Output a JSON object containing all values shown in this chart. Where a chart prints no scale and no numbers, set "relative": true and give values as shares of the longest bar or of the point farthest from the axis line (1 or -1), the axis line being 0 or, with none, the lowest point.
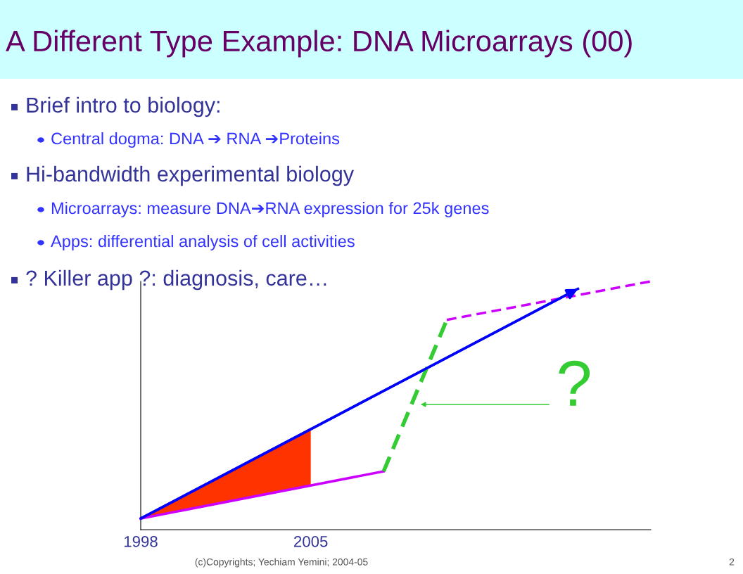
{
  "chart_data": {
    "type": "line",
    "title": "A Different Type Example: DNA Microarrays (00)",
    "relative": true,
    "xlim": [
      1998,
      2019
    ],
    "xticks": [
      1998,
      2005
    ],
    "tick_labels": "x",
    "grid": false,
    "marker": "none",
    "annotations": [
      "Brief intro to biology:",
      "Central dogma: DNA ➔ RNA ➔Proteins",
      "Hi-bandwidth experimental biology",
      "Microarrays: measure DNA➔RNA expression for 25k genes",
      "Apps: differential analysis of cell activities",
      "? Killer app ?: diagnosis, care…",
      "(c)Copyrights; Yechiam Yemini; 2004-05",
      "2",
      "?"
    ],
    "series": [
      {
        "type": "area",
        "color": "#ff3300",
        "x": [
          1998,
          2005
        ],
        "values": [
          0.045,
          0.41
        ]
      },
      {
        "color": "#0000ff",
        "x": [
          1998,
          2016
        ],
        "values": [
          0.045,
          0.97
        ],
        "line_style": "solid"
      },
      {
        "color": "#cc00ff",
        "x": [
          1998,
          2008
        ],
        "values": [
          0.045,
          0.235
        ],
        "line_style": "solid"
      },
      {
        "color": "#33cc33",
        "x": [
          2008,
          2010.6
        ],
        "values": [
          0.235,
          0.845
        ],
        "line_style": "dashed"
      },
      {
        "color": "#cc00ff",
        "x": [
          2010.6,
          2019
        ],
        "values": [
          0.845,
          1.0
        ],
        "line_style": "dashed"
      }
    ]
  }
}
